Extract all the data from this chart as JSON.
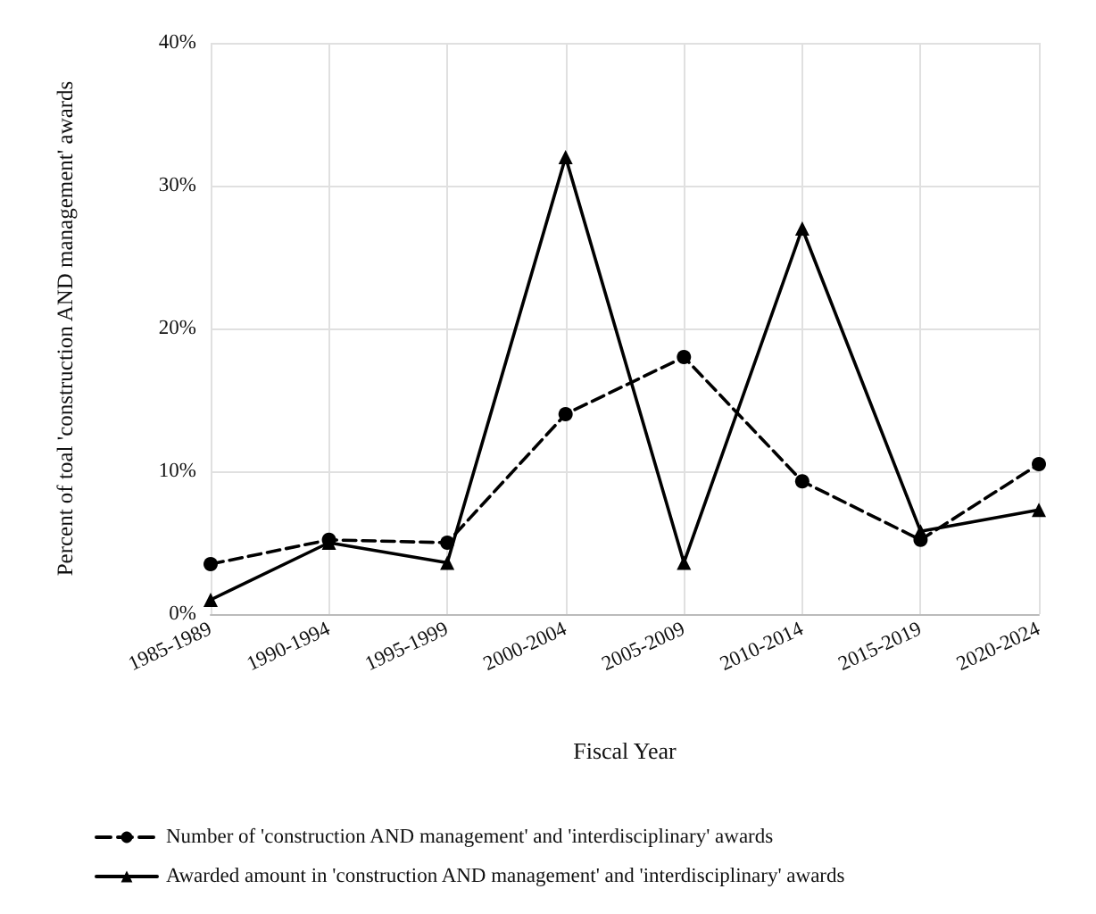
{
  "chart_data": {
    "type": "line",
    "xlabel": "Fiscal Year",
    "ylabel": "Percent of toal 'construction AND management' awards",
    "categories": [
      "1985-1989",
      "1990-1994",
      "1995-1999",
      "2000-2004",
      "2005-2009",
      "2010-2014",
      "2015-2019",
      "2020-2024"
    ],
    "series": [
      {
        "name": "Number of 'construction AND management' and 'interdisciplinary' awards",
        "color": "#000000",
        "values": [
          3.5,
          5.2,
          5,
          14,
          18,
          9.3,
          5.2,
          10.5
        ],
        "marker": "circle",
        "line_style": "dashed"
      },
      {
        "name": "Awarded amount in 'construction AND management' and 'interdisciplinary' awards",
        "color": "#000000",
        "values": [
          1,
          5,
          3.6,
          32,
          3.6,
          27,
          5.8,
          7.3
        ],
        "marker": "triangle",
        "line_style": "solid"
      }
    ],
    "ylim": [
      0,
      40
    ],
    "yticks": [
      {
        "value": 0,
        "label": "0%"
      },
      {
        "value": 10,
        "label": "10%"
      },
      {
        "value": 20,
        "label": "20%"
      },
      {
        "value": 30,
        "label": "30%"
      },
      {
        "value": 40,
        "label": "40%"
      }
    ],
    "grid": true,
    "legend": "bottom"
  }
}
